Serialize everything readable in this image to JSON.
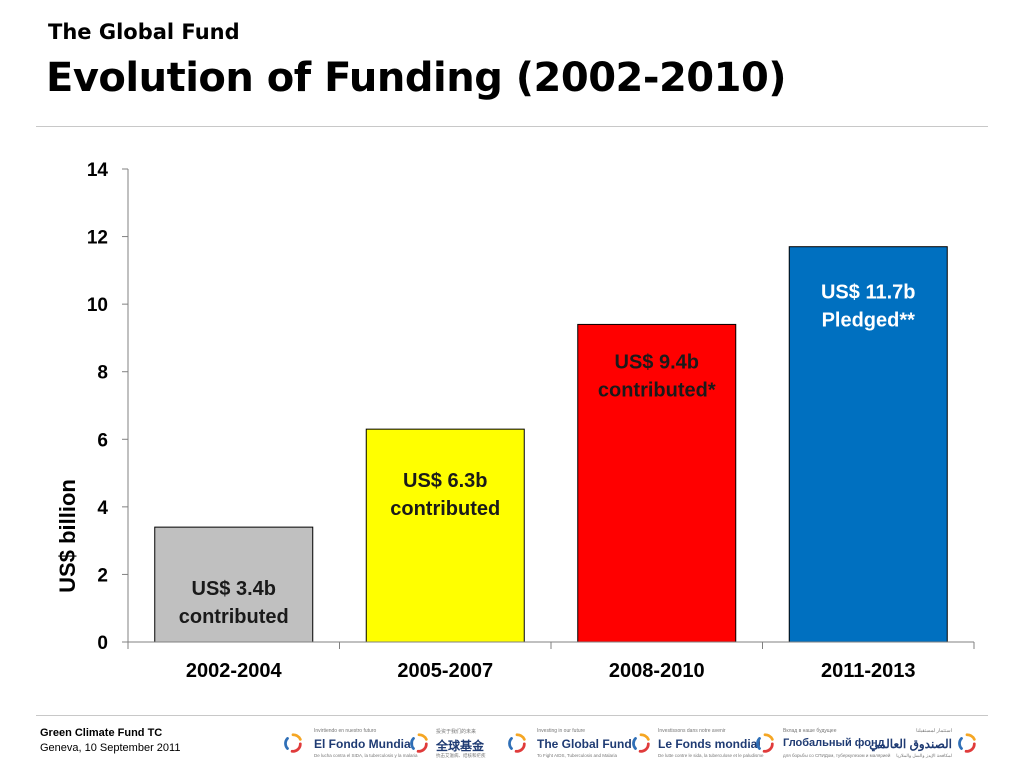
{
  "header": {
    "supertitle": "The Global Fund",
    "title": "Evolution of Funding (2002-2010)"
  },
  "chart_data": {
    "type": "bar",
    "categories": [
      "2002-2004",
      "2005-2007",
      "2008-2010",
      "2011-2013"
    ],
    "values": [
      3.4,
      6.3,
      9.4,
      11.7
    ],
    "colors": [
      "#c0c0c0",
      "#ffff00",
      "#ff0000",
      "#0070c0"
    ],
    "data_labels": [
      [
        "US$ 3.4b",
        "contributed"
      ],
      [
        "US$ 6.3b",
        "contributed"
      ],
      [
        "US$ 9.4b",
        "contributed*"
      ],
      [
        "US$ 11.7b",
        "Pledged**"
      ]
    ],
    "label_colors": [
      "#1a1a1a",
      "#1a1a1a",
      "#1a1a1a",
      "#ffffff"
    ],
    "ylabel": "US$ billion",
    "ylim": [
      0,
      14
    ],
    "yticks": [
      0,
      2,
      4,
      6,
      8,
      10,
      12,
      14
    ],
    "grid": false
  },
  "footer": {
    "title": "Green Climate Fund TC",
    "subtitle": "Geneva, 10 September 2011"
  },
  "logos": [
    {
      "tag": "Invirtiendo en nuestro futuro",
      "name": "El Fondo Mundial",
      "sub": "De lucha contra el SIDA, la tuberculosis y la malaria",
      "icon": "global-fund-swirl-icon"
    },
    {
      "tag": "投资于我们的未来",
      "name": "全球基金",
      "sub": "抗击艾滋病、结核和疟疾",
      "icon": "global-fund-swirl-icon"
    },
    {
      "tag": "Investing in our future",
      "name": "The Global Fund",
      "sub": "To Fight AIDS, Tuberculosis and Malaria",
      "icon": "global-fund-swirl-icon"
    },
    {
      "tag": "Investissons dans notre avenir",
      "name": "Le Fonds mondial",
      "sub": "De lutte contre le sida, la tuberculose et le paludisme",
      "icon": "global-fund-swirl-icon"
    },
    {
      "tag": "Вклад в наше будущее",
      "name": "Глобальный фонд",
      "sub": "для борьбы со СПИДом, туберкулезом и малярией",
      "icon": "global-fund-swirl-icon"
    },
    {
      "tag": "استثمار لمستقبلنا",
      "name": "الصندوق العالمي",
      "sub": "لمكافحة الإيدز والسل والملاريا",
      "icon": "global-fund-swirl-icon"
    }
  ]
}
